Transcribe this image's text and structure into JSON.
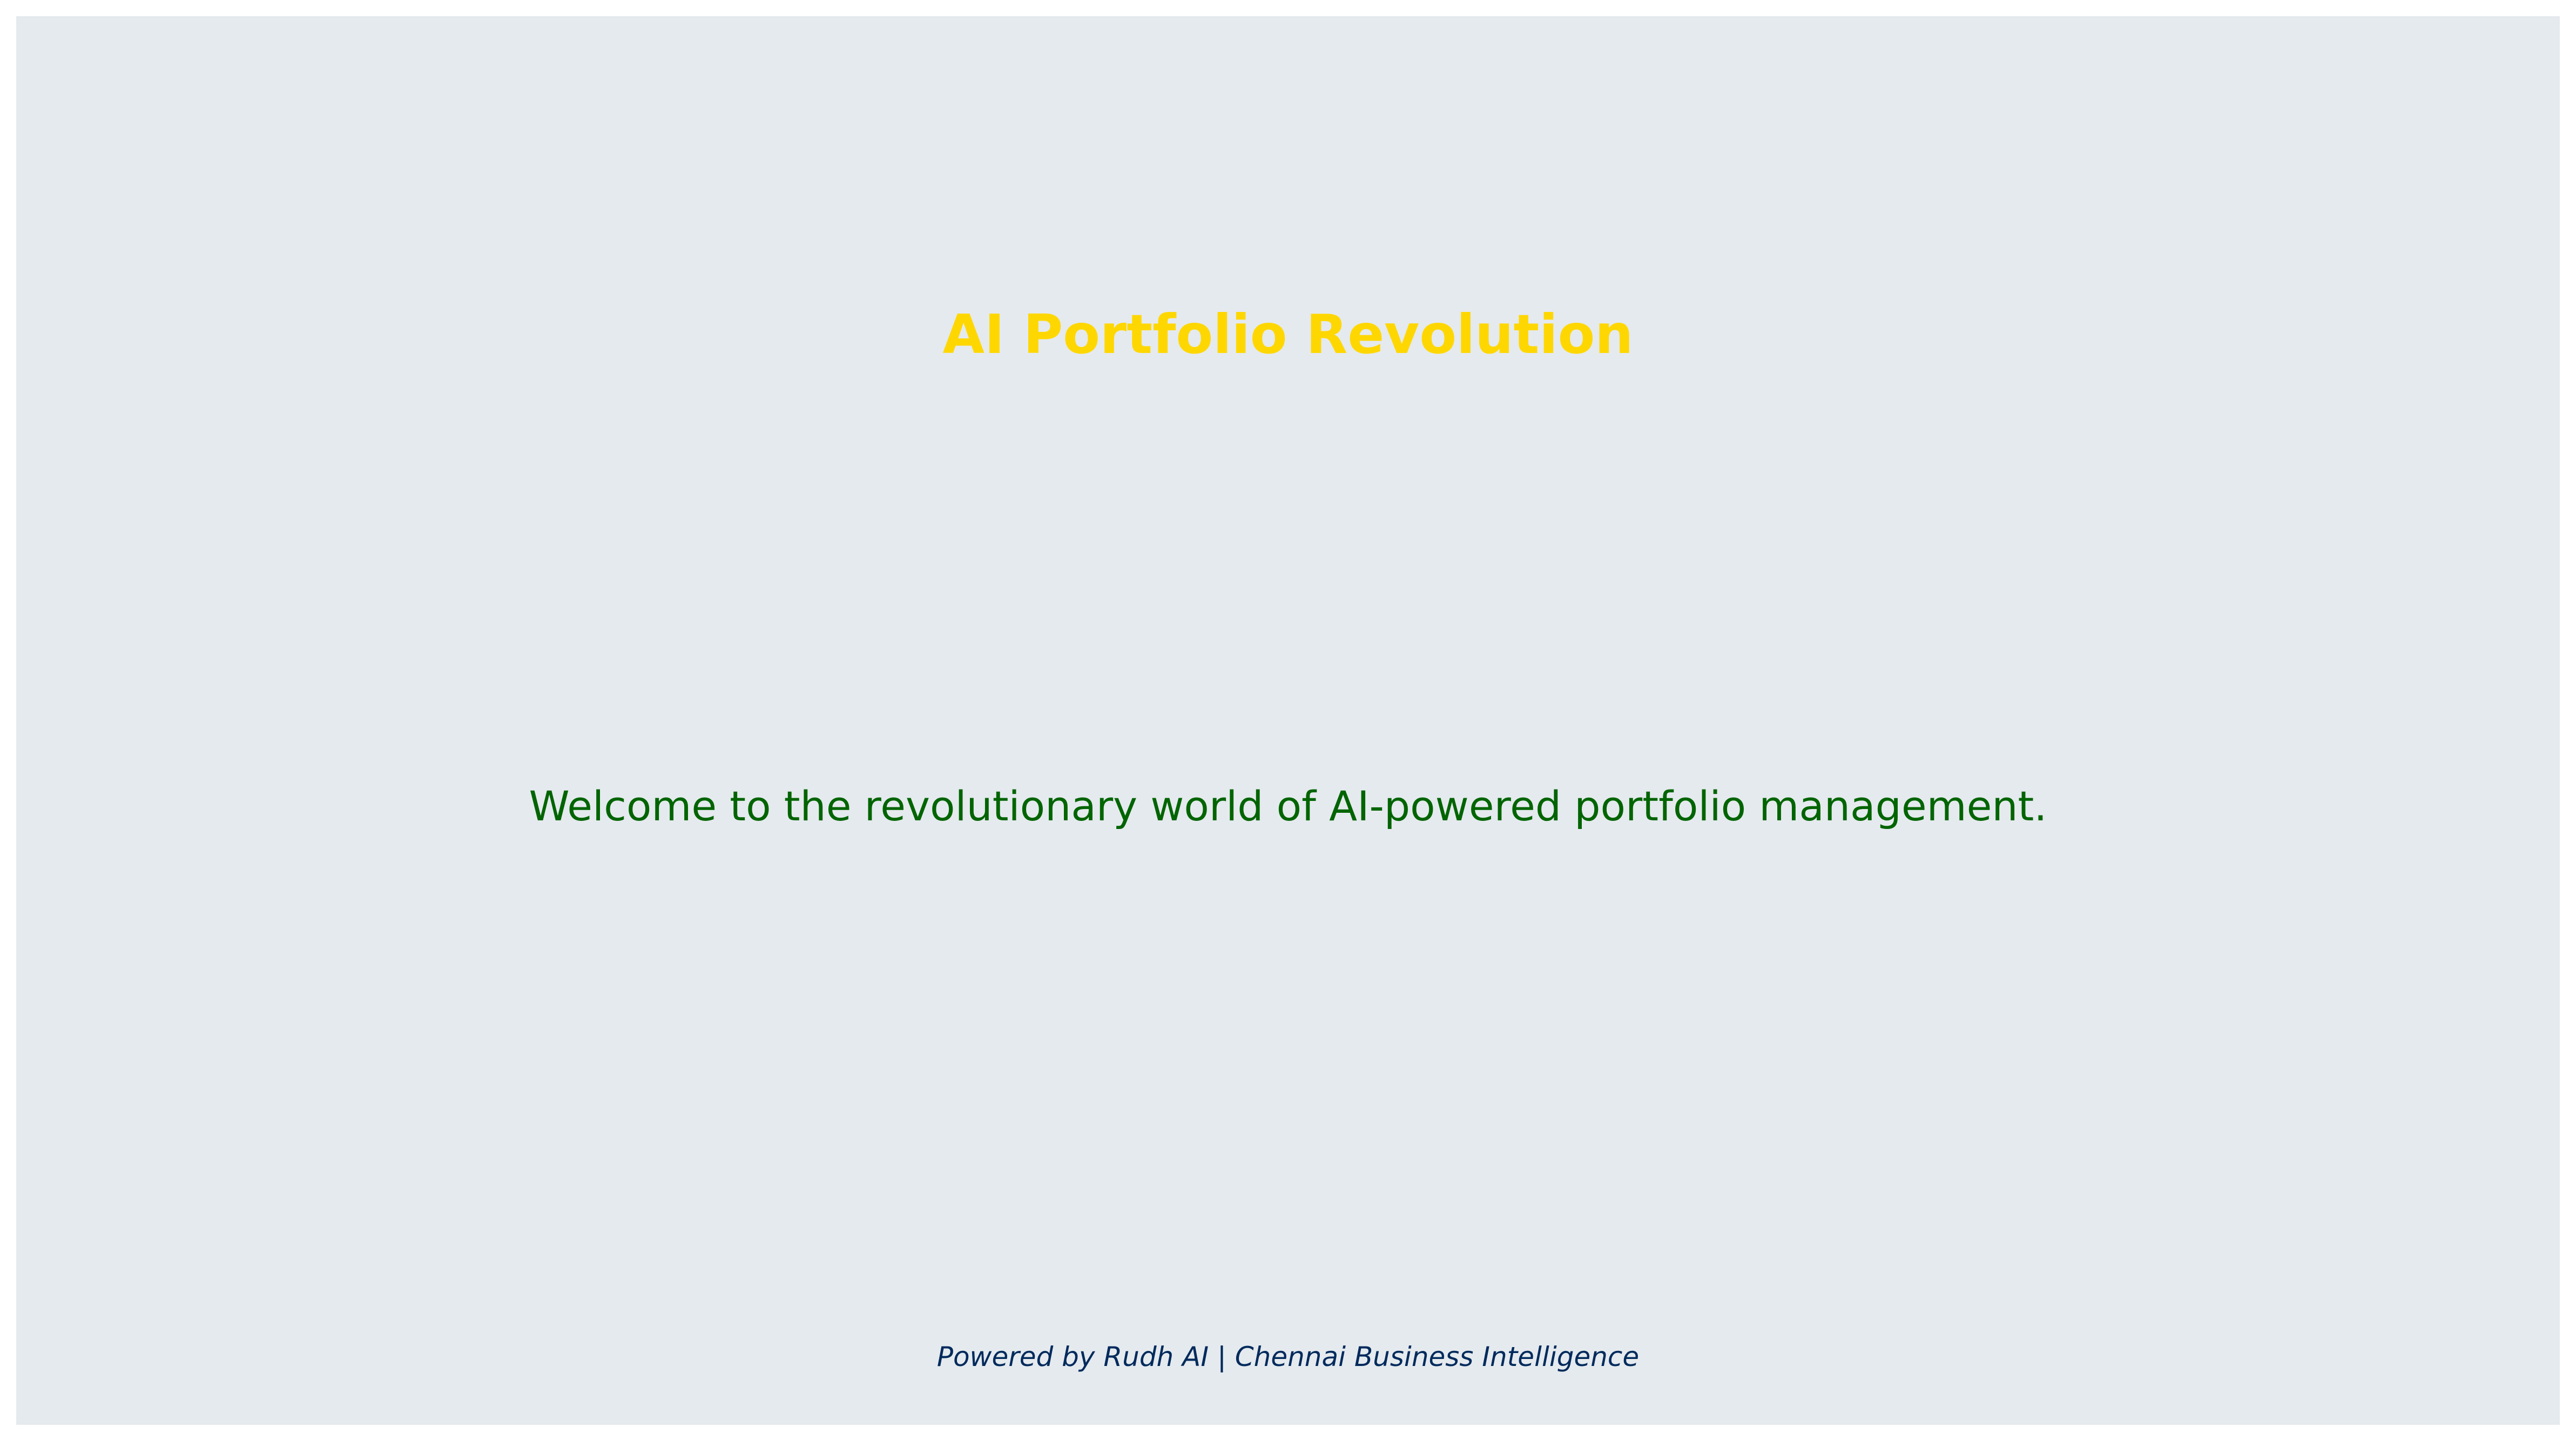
{
  "slide": {
    "title": "AI Portfolio Revolution",
    "body_text": "Welcome to the revolutionary world of AI-powered portfolio management.",
    "footer_text": "Powered by Rudh AI | Chennai Business Intelligence"
  },
  "colors": {
    "background": "#e5eaee",
    "title": "#ffd700",
    "body_text": "#006400",
    "footer_text": "#002a5c"
  }
}
